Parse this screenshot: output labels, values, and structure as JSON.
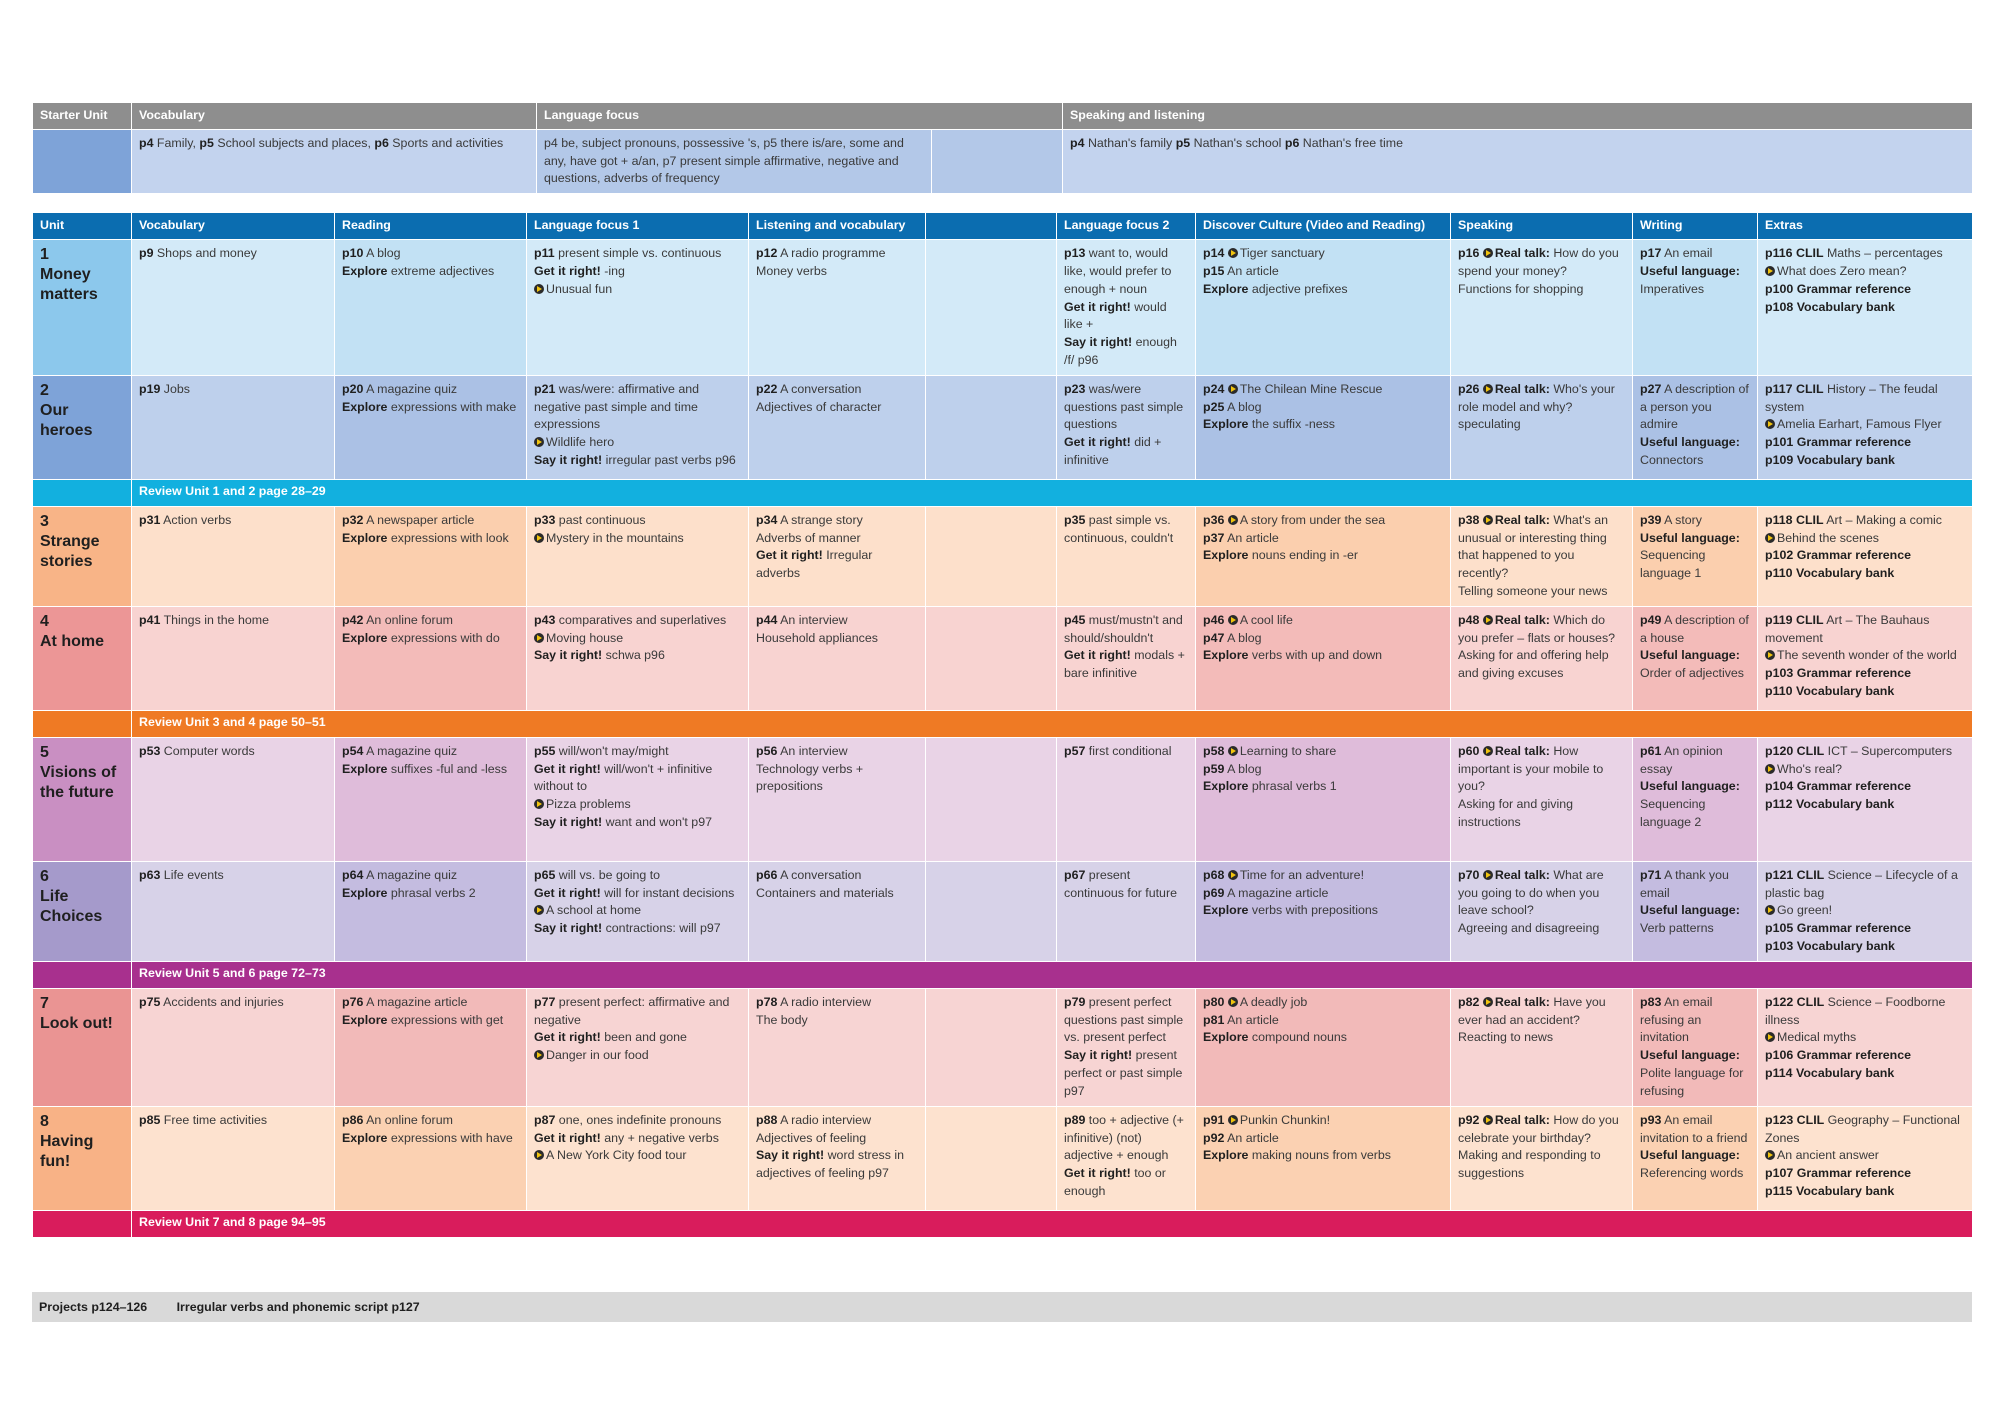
{
  "starter": {
    "headers": [
      "Starter Unit",
      "Vocabulary",
      "Language focus",
      "Speaking and listening"
    ],
    "vocab": [
      [
        "p4",
        "Family,"
      ],
      [
        "p5",
        "School subjects and places,"
      ],
      [
        "p6",
        "Sports and activities"
      ]
    ],
    "lang": "p4 be, subject pronouns, possessive 's, p5 there is/are, some and any, have got + a/an, p7 present simple affirmative, negative and questions, adverbs of frequency",
    "speaking": [
      [
        "p4",
        "Nathan's family"
      ],
      [
        "p5",
        "Nathan's school"
      ],
      [
        "p6",
        "Nathan's free time"
      ]
    ]
  },
  "headers": [
    "Unit",
    "Vocabulary",
    "Reading",
    "Language focus 1",
    "Listening and vocabulary",
    "",
    "Language focus 2",
    "Discover Culture (Video and Reading)",
    "Speaking",
    "Writing",
    "Extras"
  ],
  "units": [
    {
      "num": "1",
      "title": "Money matters",
      "vocab": "p9 Shops and money",
      "reading": "p10 A blog · Explore extreme adjectives",
      "lf1": "p11 present simple vs. continuous · Get it right! -ing · Unusual fun",
      "listening": "p12 A radio programme · Money verbs",
      "lf2": "p13 want to, would like, would prefer to enough + noun · Get it right! would like + · Say it right! enough /f/ p96",
      "culture": "p14 Tiger sanctuary · p15 An article · Explore adjective prefixes",
      "speaking": "p16 Real talk: How do you spend your money? · Functions for shopping",
      "writing": "p17 An email · Useful language: Imperatives",
      "extras": "p116 CLIL Maths – percentages · What does Zero mean? · p100 Grammar reference · p108 Vocabulary bank"
    },
    {
      "num": "2",
      "title": "Our heroes",
      "vocab": "p19 Jobs",
      "reading": "p20 A magazine quiz · Explore expressions with make",
      "lf1": "p21 was/were: affirmative and negative past simple and time expressions · Wildlife hero · Say it right! irregular past verbs p96",
      "listening": "p22 A conversation · Adjectives of character",
      "lf2": "p23 was/were questions past simple questions · Get it right! did + infinitive",
      "culture": "p24 The Chilean Mine Rescue · p25 A blog · Explore the suffix -ness",
      "speaking": "p26 Real talk: Who's your role model and why? speculating",
      "writing": "p27 A description of a person you admire · Useful language: Connectors",
      "extras": "p117 CLIL History – The feudal system · Amelia Earhart, Famous Flyer · p101 Grammar reference · p109 Vocabulary bank"
    },
    {
      "num": "3",
      "title": "Strange stories",
      "vocab": "p31 Action verbs",
      "reading": "p32 A newspaper article · Explore expressions with look",
      "lf1": "p33 past continuous · Mystery in the mountains",
      "listening": "p34 A strange story · Adverbs of manner · Get it right! Irregular adverbs",
      "lf2": "p35 past simple vs. continuous, couldn't",
      "culture": "p36 A story from under the sea · p37 An article · Explore nouns ending in -er",
      "speaking": "p38 Real talk: What's an unusual or interesting thing that happened to you recently? · Telling someone your news",
      "writing": "p39 A story · Useful language: Sequencing language 1",
      "extras": "p118 CLIL Art – Making a comic · Behind the scenes · p102 Grammar reference · p110 Vocabulary bank"
    },
    {
      "num": "4",
      "title": "At home",
      "vocab": "p41 Things in the home",
      "reading": "p42 An online forum · Explore expressions with do",
      "lf1": "p43 comparatives and superlatives · Moving house · Say it right! schwa p96",
      "listening": "p44 An interview · Household appliances",
      "lf2": "p45 must/mustn't and should/shouldn't · Get it right! modals + bare infinitive",
      "culture": "p46 A cool life · p47 A blog · Explore verbs with up and down",
      "speaking": "p48 Real talk: Which do you prefer – flats or houses? · Asking for and offering help and giving excuses",
      "writing": "p49 A description of a house · Useful language: Order of adjectives",
      "extras": "p119 CLIL Art – The Bauhaus movement · The seventh wonder of the world · p103 Grammar reference · p110 Vocabulary bank"
    },
    {
      "num": "5",
      "title": "Visions of the future",
      "vocab": "p53 Computer words",
      "reading": "p54 A magazine quiz · Explore suffixes -ful and -less",
      "lf1": "p55 will/won't may/might · Get it right! will/won't + infinitive without to · Pizza problems · Say it right! want and won't p97",
      "listening": "p56 An interview · Technology verbs + prepositions",
      "lf2": "p57 first conditional",
      "culture": "p58 Learning to share · p59 A blog · Explore phrasal verbs 1",
      "speaking": "p60 Real talk: How important is your mobile to you? · Asking for and giving instructions",
      "writing": "p61 An opinion essay · Useful language: Sequencing language 2",
      "extras": "p120 CLIL ICT – Supercomputers · Who's real? · p104 Grammar reference · p112 Vocabulary bank"
    },
    {
      "num": "6",
      "title": "Life Choices",
      "vocab": "p63 Life events",
      "reading": "p64 A magazine quiz · Explore phrasal verbs 2",
      "lf1": "p65 will vs. be going to · Get it right! will for instant decisions · A school at home · Say it right! contractions: will p97",
      "listening": "p66 A conversation · Containers and materials",
      "lf2": "p67 present continuous for future",
      "culture": "p68 Time for an adventure! · p69 A magazine article · Explore verbs with prepositions",
      "speaking": "p70 Real talk: What are you going to do when you leave school? · Agreeing and disagreeing",
      "writing": "p71 A thank you email · Useful language: Verb patterns",
      "extras": "p121 CLIL Science – Lifecycle of a plastic bag · Go green! · p105 Grammar reference · p103 Vocabulary bank"
    },
    {
      "num": "7",
      "title": "Look out!",
      "vocab": "p75 Accidents and injuries",
      "reading": "p76 A magazine article · Explore expressions with get",
      "lf1": "p77 present perfect: affirmative and negative · Get it right! been and gone · Danger in our food",
      "listening": "p78 A radio interview · The body",
      "lf2": "p79 present perfect questions past simple vs. present perfect · Say it right! present perfect or past simple p97",
      "culture": "p80 A deadly job · p81 An article · Explore compound nouns",
      "speaking": "p82 Real talk: Have you ever had an accident? · Reacting to news",
      "writing": "p83 An email refusing an invitation · Useful language: Polite language for refusing",
      "extras": "p122 CLIL Science – Foodborne illness · Medical myths · p106 Grammar reference · p114 Vocabulary bank"
    },
    {
      "num": "8",
      "title": "Having fun!",
      "vocab": "p85 Free time activities",
      "reading": "p86 An online forum · Explore expressions with have",
      "lf1": "p87 one, ones indefinite pronouns · Get it right! any + negative verbs · A New York City food tour",
      "listening": "p88 A radio interview · Adjectives of feeling · Say it right! word stress in adjectives of feeling p97",
      "lf2": "p89 too + adjective (+ infinitive) (not) adjective + enough · Get it right! too or enough",
      "culture": "p91 Punkin Chunkin! · p92 An article · Explore making nouns from verbs",
      "speaking": "p92 Real talk: How do you celebrate your birthday? · Making and responding to suggestions",
      "writing": "p93 An email invitation to a friend · Useful language: Referencing words",
      "extras": "p123 CLIL Geography – Functional Zones · An ancient answer · p107 Grammar reference · p115 Vocabulary bank"
    }
  ],
  "reviews": [
    {
      "text": "Review Unit 1 and 2 page 28–29",
      "color": "#12b0df"
    },
    {
      "text": "Review Unit 3 and 4 page 50–51",
      "color": "#ef7a24"
    },
    {
      "text": "Review Unit 5 and 6 page 72–73",
      "color": "#a8308e"
    },
    {
      "text": "Review Unit 7 and 8 page 94–95",
      "color": "#d91c5c"
    }
  ],
  "footer": {
    "projects": "Projects p124–126",
    "irregular": "Irregular verbs and phonemic script p127"
  }
}
